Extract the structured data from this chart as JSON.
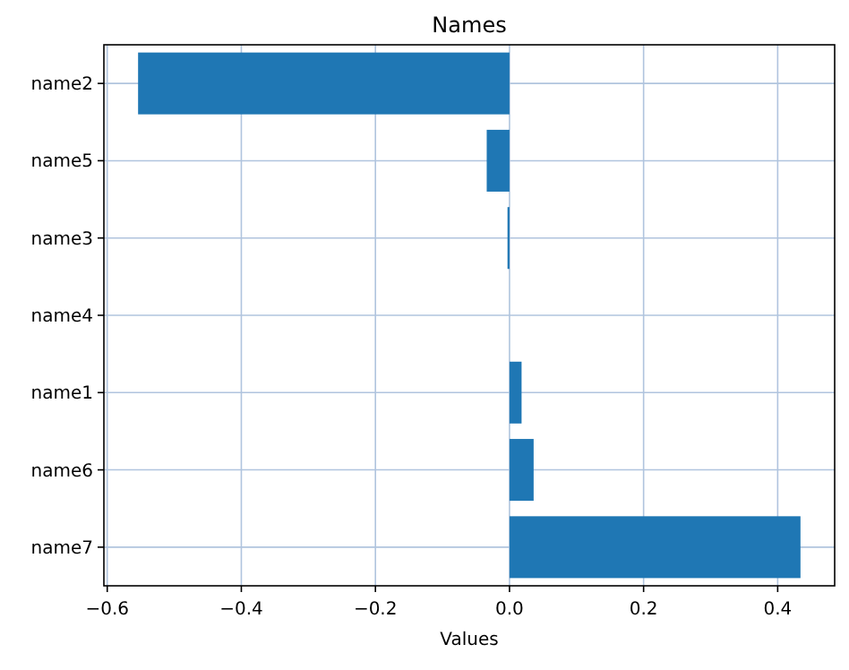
{
  "chart_data": {
    "type": "bar",
    "orientation": "horizontal",
    "title": "Names",
    "xlabel": "Values",
    "categories": [
      "name2",
      "name5",
      "name3",
      "name4",
      "name1",
      "name6",
      "name7"
    ],
    "values": [
      -0.554,
      -0.034,
      -0.003,
      0,
      0.018,
      0.036,
      0.434
    ],
    "color": "#1f77b4",
    "xlim": [
      -0.605,
      0.485
    ],
    "xticks": [
      {
        "value": -0.6,
        "label": "−0.6"
      },
      {
        "value": -0.4,
        "label": "−0.4"
      },
      {
        "value": -0.2,
        "label": "−0.2"
      },
      {
        "value": 0,
        "label": "0.0"
      },
      {
        "value": 0.2,
        "label": "0.2"
      },
      {
        "value": 0.4,
        "label": "0.4"
      }
    ],
    "grid": true
  }
}
